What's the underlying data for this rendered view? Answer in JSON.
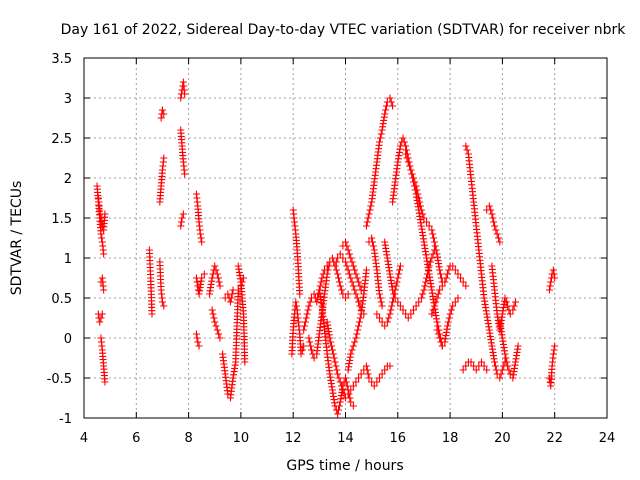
{
  "chart_data": {
    "type": "scatter",
    "title": "Day 161 of 2022, Sidereal Day-to-day VTEC variation (SDTVAR) for receiver nbrk",
    "xlabel": "GPS time / hours",
    "ylabel": "SDTVAR / TECUs",
    "xlim": [
      4,
      24
    ],
    "ylim": [
      -1,
      3.5
    ],
    "xticks": [
      4,
      6,
      8,
      10,
      12,
      14,
      16,
      18,
      20,
      22,
      24
    ],
    "yticks": [
      -1,
      -0.5,
      0,
      0.5,
      1,
      1.5,
      2,
      2.5,
      3,
      3.5
    ],
    "xtick_labels": [
      "4",
      "6",
      "8",
      "10",
      "12",
      "14",
      "16",
      "18",
      "20",
      "22",
      "24"
    ],
    "ytick_labels": [
      "-1",
      "-0.5",
      "0",
      "0.5",
      "1",
      "1.5",
      "2",
      "2.5",
      "3",
      "3.5"
    ],
    "grid": true,
    "marker": "+",
    "color": "#ff0000",
    "series": [
      {
        "name": "SDTVAR",
        "segments": [
          {
            "x": [
              4.5,
              4.55,
              4.6,
              4.65,
              4.7,
              4.75
            ],
            "y": [
              1.9,
              1.7,
              1.5,
              1.3,
              1.2,
              1.05
            ]
          },
          {
            "x": [
              4.55,
              4.6,
              4.65,
              4.7,
              4.75,
              4.8
            ],
            "y": [
              1.75,
              1.6,
              1.5,
              1.4,
              1.35,
              1.55
            ]
          },
          {
            "x": [
              4.55,
              4.6,
              4.65,
              4.7
            ],
            "y": [
              0.3,
              0.2,
              0.25,
              0.3
            ]
          },
          {
            "x": [
              4.65,
              4.7,
              4.75
            ],
            "y": [
              0.7,
              0.75,
              0.6
            ]
          },
          {
            "x": [
              4.65,
              4.7,
              4.75,
              4.8
            ],
            "y": [
              0.0,
              -0.15,
              -0.35,
              -0.55
            ]
          },
          {
            "x": [
              6.5,
              6.55,
              6.6
            ],
            "y": [
              1.1,
              0.75,
              0.3
            ]
          },
          {
            "x": [
              6.9,
              6.95,
              7.0,
              7.05
            ],
            "y": [
              0.95,
              0.6,
              0.45,
              0.4
            ]
          },
          {
            "x": [
              6.95,
              7.0,
              7.05
            ],
            "y": [
              2.75,
              2.85,
              2.8
            ]
          },
          {
            "x": [
              6.9,
              6.95,
              7.0,
              7.05
            ],
            "y": [
              1.7,
              1.9,
              2.1,
              2.25
            ]
          },
          {
            "x": [
              7.7,
              7.75,
              7.8,
              7.85
            ],
            "y": [
              3.0,
              3.1,
              3.2,
              3.05
            ]
          },
          {
            "x": [
              7.7,
              7.75,
              7.8,
              7.85
            ],
            "y": [
              2.6,
              2.4,
              2.2,
              2.05
            ]
          },
          {
            "x": [
              7.7,
              7.75,
              7.8
            ],
            "y": [
              1.4,
              1.5,
              1.55
            ]
          },
          {
            "x": [
              8.3,
              8.35,
              8.4,
              8.45,
              8.5
            ],
            "y": [
              1.8,
              1.65,
              1.45,
              1.3,
              1.2
            ]
          },
          {
            "x": [
              8.3,
              8.35,
              8.4,
              8.5,
              8.6
            ],
            "y": [
              0.75,
              0.65,
              0.55,
              0.75,
              0.8
            ]
          },
          {
            "x": [
              8.3,
              8.35,
              8.4
            ],
            "y": [
              0.05,
              -0.05,
              -0.1
            ]
          },
          {
            "x": [
              8.8,
              8.9,
              9.0,
              9.1,
              9.2
            ],
            "y": [
              0.55,
              0.75,
              0.9,
              0.8,
              0.65
            ]
          },
          {
            "x": [
              8.9,
              9.0,
              9.1,
              9.2
            ],
            "y": [
              0.35,
              0.2,
              0.1,
              0.0
            ]
          },
          {
            "x": [
              9.3,
              9.4,
              9.5,
              9.6,
              9.7,
              9.8,
              9.9,
              10.0,
              10.1
            ],
            "y": [
              -0.2,
              -0.45,
              -0.7,
              -0.75,
              -0.5,
              -0.3,
              0.6,
              0.65,
              0.75
            ]
          },
          {
            "x": [
              9.4,
              9.5,
              9.6,
              9.7
            ],
            "y": [
              0.5,
              0.55,
              0.45,
              0.6
            ]
          },
          {
            "x": [
              9.9,
              10.0,
              10.1,
              10.15
            ],
            "y": [
              0.9,
              0.7,
              0.3,
              -0.3
            ]
          },
          {
            "x": [
              12.0,
              12.05,
              12.1,
              12.15,
              12.2,
              12.25
            ],
            "y": [
              1.6,
              1.45,
              1.3,
              1.1,
              0.85,
              0.55
            ]
          },
          {
            "x": [
              11.95,
              12.0,
              12.05,
              12.1,
              12.15,
              12.2,
              12.25,
              12.3,
              12.4
            ],
            "y": [
              -0.2,
              0.1,
              0.3,
              0.45,
              0.35,
              0.2,
              0.05,
              -0.2,
              -0.1
            ]
          },
          {
            "x": [
              12.4,
              12.5,
              12.6,
              12.7,
              12.8,
              12.9,
              13.0,
              13.1,
              13.2,
              13.3
            ],
            "y": [
              0.1,
              0.25,
              0.4,
              0.5,
              0.55,
              0.45,
              0.6,
              0.75,
              0.85,
              0.9
            ]
          },
          {
            "x": [
              12.6,
              12.7,
              12.8,
              12.9,
              13.0,
              13.1,
              13.2,
              13.3,
              13.4,
              13.5,
              13.6,
              13.7,
              13.8,
              13.9,
              14.0,
              14.1
            ],
            "y": [
              0.0,
              -0.15,
              -0.25,
              -0.2,
              0.05,
              0.3,
              0.55,
              0.8,
              0.95,
              1.0,
              0.9,
              0.8,
              0.65,
              0.55,
              0.5,
              0.55
            ]
          },
          {
            "x": [
              13.0,
              13.1,
              13.2,
              13.3,
              13.4,
              13.5,
              13.6,
              13.7,
              13.8,
              13.9,
              14.0,
              14.1,
              14.2,
              14.3
            ],
            "y": [
              0.6,
              0.4,
              0.1,
              -0.2,
              -0.45,
              -0.65,
              -0.85,
              -0.95,
              -0.8,
              -0.6,
              -0.5,
              -0.65,
              -0.8,
              -0.85
            ]
          },
          {
            "x": [
              13.3,
              13.4,
              13.5,
              13.6,
              13.7,
              13.8,
              13.9,
              14.0,
              14.1,
              14.2,
              14.3,
              14.4,
              14.5,
              14.6,
              14.7,
              14.8,
              14.9,
              15.0,
              15.1,
              15.2,
              15.3,
              15.4,
              15.5,
              15.6,
              15.7
            ],
            "y": [
              0.2,
              0.0,
              -0.15,
              -0.3,
              -0.45,
              -0.55,
              -0.65,
              -0.75,
              -0.7,
              -0.65,
              -0.6,
              -0.55,
              -0.5,
              -0.45,
              -0.4,
              -0.35,
              -0.5,
              -0.55,
              -0.6,
              -0.55,
              -0.5,
              -0.45,
              -0.4,
              -0.35,
              -0.35
            ]
          },
          {
            "x": [
              13.6,
              13.7,
              13.8,
              13.9,
              14.0,
              14.1,
              14.2,
              14.3,
              14.4,
              14.5,
              14.6,
              14.7
            ],
            "y": [
              0.9,
              1.0,
              1.05,
              1.0,
              0.95,
              0.85,
              0.75,
              0.65,
              0.55,
              0.45,
              0.35,
              0.3
            ]
          },
          {
            "x": [
              13.9,
              14.0,
              14.1,
              14.2,
              14.3,
              14.4,
              14.5,
              14.6
            ],
            "y": [
              1.15,
              1.2,
              1.1,
              1.0,
              0.9,
              0.8,
              0.7,
              0.6
            ]
          },
          {
            "x": [
              14.1,
              14.2,
              14.3,
              14.4,
              14.5,
              14.6,
              14.7,
              14.8
            ],
            "y": [
              -0.4,
              -0.2,
              -0.1,
              0.0,
              0.15,
              0.3,
              0.55,
              0.85
            ]
          },
          {
            "x": [
              14.8,
              14.9,
              15.0,
              15.1,
              15.2,
              15.3,
              15.4,
              15.5,
              15.6,
              15.7,
              15.8
            ],
            "y": [
              1.4,
              1.55,
              1.7,
              1.95,
              2.2,
              2.45,
              2.6,
              2.8,
              2.95,
              3.0,
              2.9
            ]
          },
          {
            "x": [
              14.9,
              15.0,
              15.1,
              15.2,
              15.3,
              15.4
            ],
            "y": [
              1.2,
              1.25,
              1.1,
              0.85,
              0.55,
              0.4
            ]
          },
          {
            "x": [
              15.2,
              15.3,
              15.4,
              15.5,
              15.6,
              15.7,
              15.8,
              15.9,
              16.0,
              16.1
            ],
            "y": [
              0.3,
              0.25,
              0.2,
              0.15,
              0.2,
              0.3,
              0.45,
              0.6,
              0.75,
              0.9
            ]
          },
          {
            "x": [
              15.5,
              15.6,
              15.7,
              15.8,
              15.9,
              16.0,
              16.1,
              16.2,
              16.3,
              16.4,
              16.5,
              16.6,
              16.7,
              16.8,
              16.9,
              17.0,
              17.1,
              17.2,
              17.3,
              17.4
            ],
            "y": [
              1.2,
              1.0,
              0.8,
              0.6,
              0.5,
              0.45,
              0.4,
              0.35,
              0.3,
              0.25,
              0.3,
              0.35,
              0.4,
              0.45,
              0.5,
              0.6,
              0.75,
              0.9,
              1.0,
              1.1
            ]
          },
          {
            "x": [
              15.8,
              15.9,
              16.0,
              16.1,
              16.2,
              16.3,
              16.4,
              16.5,
              16.6,
              16.7,
              16.8,
              16.9,
              17.0,
              17.1,
              17.2,
              17.3,
              17.4,
              17.5,
              17.6,
              17.7
            ],
            "y": [
              1.7,
              1.95,
              2.2,
              2.4,
              2.5,
              2.4,
              2.25,
              2.1,
              1.95,
              1.8,
              1.6,
              1.4,
              1.2,
              1.0,
              0.8,
              0.6,
              0.4,
              0.2,
              0.05,
              -0.1
            ]
          },
          {
            "x": [
              16.3,
              16.4,
              16.5,
              16.6,
              16.7,
              16.8,
              16.9,
              17.0,
              17.1,
              17.2,
              17.3,
              17.4,
              17.5,
              17.6,
              17.7
            ],
            "y": [
              2.3,
              2.2,
              2.1,
              2.0,
              1.9,
              1.75,
              1.6,
              1.5,
              1.45,
              1.4,
              1.35,
              1.2,
              1.05,
              0.85,
              0.7
            ]
          },
          {
            "x": [
              17.3,
              17.4,
              17.5,
              17.6,
              17.7,
              17.8,
              17.9,
              18.0,
              18.1,
              18.2,
              18.3,
              18.4,
              18.5,
              18.6
            ],
            "y": [
              0.3,
              0.4,
              0.5,
              0.6,
              0.65,
              0.7,
              0.8,
              0.9,
              0.9,
              0.85,
              0.8,
              0.75,
              0.7,
              0.65
            ]
          },
          {
            "x": [
              17.5,
              17.6,
              17.7,
              17.8,
              17.9,
              18.0,
              18.1,
              18.2,
              18.3
            ],
            "y": [
              0.1,
              0.0,
              -0.1,
              -0.05,
              0.15,
              0.3,
              0.4,
              0.45,
              0.5
            ]
          },
          {
            "x": [
              18.5,
              18.6,
              18.7,
              18.8,
              18.9,
              19.0,
              19.1,
              19.2,
              19.3,
              19.4
            ],
            "y": [
              -0.4,
              -0.35,
              -0.3,
              -0.3,
              -0.35,
              -0.4,
              -0.35,
              -0.3,
              -0.35,
              -0.4
            ]
          },
          {
            "x": [
              18.6,
              18.7,
              18.8,
              18.9,
              19.0,
              19.1,
              19.2,
              19.3,
              19.4,
              19.5,
              19.6,
              19.7,
              19.8,
              19.9,
              20.0,
              20.1
            ],
            "y": [
              2.4,
              2.3,
              2.0,
              1.7,
              1.4,
              1.1,
              0.8,
              0.5,
              0.3,
              0.1,
              -0.1,
              -0.3,
              -0.45,
              -0.5,
              -0.4,
              -0.3
            ]
          },
          {
            "x": [
              19.4,
              19.5,
              19.6,
              19.7,
              19.8,
              19.9
            ],
            "y": [
              1.6,
              1.65,
              1.55,
              1.4,
              1.3,
              1.2
            ]
          },
          {
            "x": [
              19.6,
              19.7,
              19.8,
              19.9,
              20.0,
              20.1,
              20.2,
              20.3,
              20.4,
              20.5
            ],
            "y": [
              0.9,
              0.6,
              0.3,
              0.1,
              0.3,
              0.5,
              0.4,
              0.3,
              0.35,
              0.45
            ]
          },
          {
            "x": [
              19.9,
              20.0,
              20.1,
              20.2,
              20.3,
              20.4,
              20.5,
              20.6
            ],
            "y": [
              0.2,
              0.0,
              -0.2,
              -0.35,
              -0.45,
              -0.5,
              -0.3,
              -0.1
            ]
          },
          {
            "x": [
              21.8,
              21.85,
              21.9,
              21.95,
              22.0
            ],
            "y": [
              0.6,
              0.7,
              0.8,
              0.85,
              0.75
            ]
          },
          {
            "x": [
              21.8,
              21.85,
              21.9,
              21.95,
              22.0
            ],
            "y": [
              -0.5,
              -0.6,
              -0.35,
              -0.2,
              -0.1
            ]
          }
        ]
      }
    ]
  }
}
